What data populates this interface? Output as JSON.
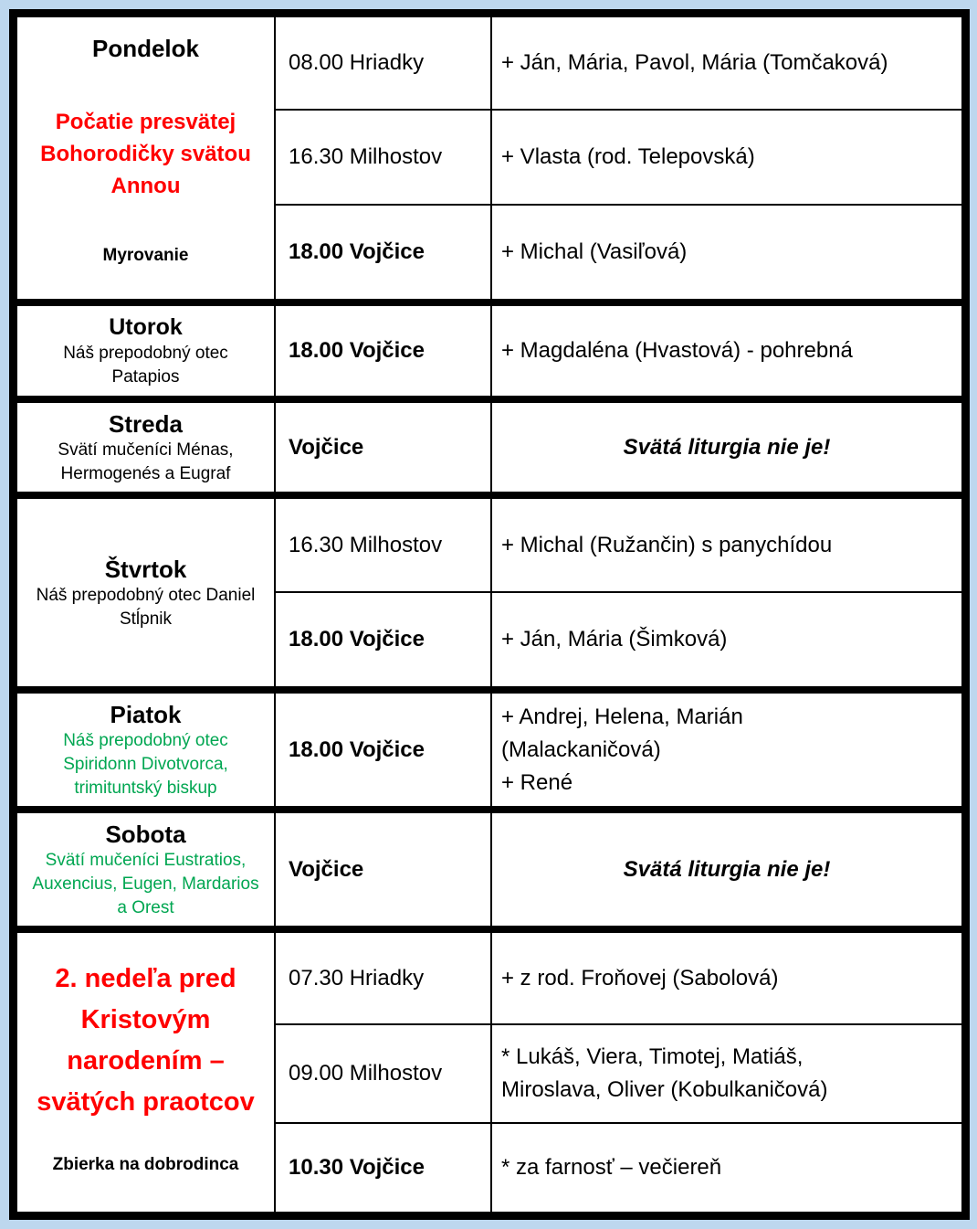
{
  "colors": {
    "background": "#bdd7ee",
    "red": "#ff0000",
    "green": "#00a651",
    "black": "#000000"
  },
  "table": {
    "blocks": [
      {
        "day": {
          "title": "Pondelok",
          "feast": "Počatie presvätej Bohorodičky svätou Annou",
          "note": "Myrovanie"
        },
        "rows": [
          {
            "time": "08.00 Hriadky",
            "intention": "+ Ján, Mária, Pavol, Mária (Tomčaková)"
          },
          {
            "time": "16.30 Milhostov",
            "intention": "+ Vlasta (rod. Telepovská)"
          },
          {
            "time": "18.00 Vojčice",
            "intention": "+ Michal (Vasiľová)"
          }
        ]
      },
      {
        "day": {
          "title": "Utorok",
          "feast": "Náš prepodobný otec Patapios"
        },
        "rows": [
          {
            "time": "18.00 Vojčice",
            "intention": "+ Magdaléna (Hvastová) - pohrebná"
          }
        ]
      },
      {
        "day": {
          "title": "Streda",
          "feast": "Svätí mučeníci Ménas, Hermogenés a Eugraf"
        },
        "rows": [
          {
            "time": "Vojčice",
            "intention": "Svätá liturgia nie je!"
          }
        ]
      },
      {
        "day": {
          "title": "Štvrtok",
          "feast": "Náš prepodobný otec Daniel Stĺpnik"
        },
        "rows": [
          {
            "time": "16.30 Milhostov",
            "intention": "+ Michal (Ružančin) s panychídou"
          },
          {
            "time": "18.00 Vojčice",
            "intention": "+ Ján, Mária (Šimková)"
          }
        ]
      },
      {
        "day": {
          "title": "Piatok",
          "feast": "Náš prepodobný otec Spiridonn Divotvorca, trimituntský biskup"
        },
        "rows": [
          {
            "time": "18.00 Vojčice",
            "lines": [
              "+ Andrej, Helena, Marián",
              "(Malackaničová)",
              "+ René"
            ]
          }
        ]
      },
      {
        "day": {
          "title": "Sobota",
          "feast": "Svätí mučeníci Eustratios, Auxencius, Eugen, Mardarios a Orest"
        },
        "rows": [
          {
            "time": "Vojčice",
            "intention": "Svätá liturgia nie je!"
          }
        ]
      },
      {
        "day": {
          "title": "2. nedeľa pred Kristovým narodením – svätých praotcov",
          "note": "Zbierka na dobrodinca"
        },
        "rows": [
          {
            "time": "07.30 Hriadky",
            "intention": "+ z rod. Froňovej (Sabolová)"
          },
          {
            "time": "09.00 Milhostov",
            "lines": [
              "* Lukáš, Viera, Timotej, Matiáš,",
              "Miroslava, Oliver (Kobulkaničová)"
            ]
          },
          {
            "time": "10.30 Vojčice",
            "intention": "* za farnosť – večiereň"
          }
        ]
      }
    ]
  }
}
